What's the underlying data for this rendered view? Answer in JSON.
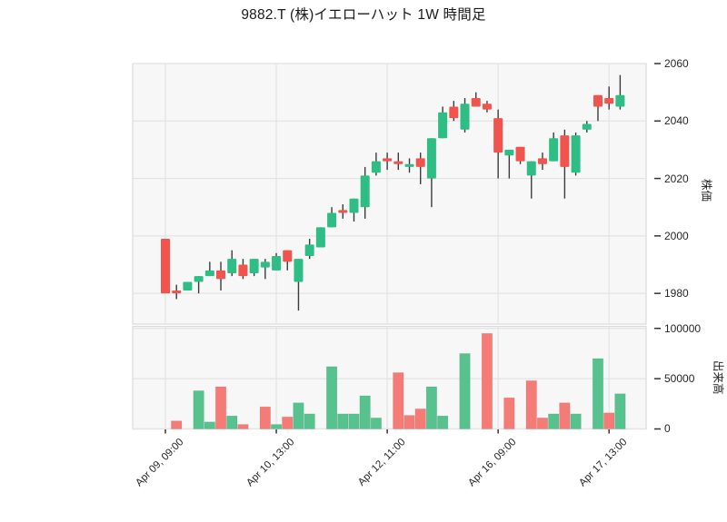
{
  "title": "9882.T (株)イエローハット 1W 時間足",
  "chart_data": {
    "type": "candlestick+volume",
    "title": "9882.T (株)イエローハット 1W 時間足",
    "num_candles": 42,
    "x_tick_labels": [
      "Apr 09, 09:00",
      "Apr 10, 13:00",
      "Apr 12, 11:00",
      "Apr 16, 09:00",
      "Apr 17, 13:00"
    ],
    "x_tick_indices": [
      0,
      10,
      20,
      30,
      40
    ],
    "price_axis": {
      "label": "株価",
      "ticks": [
        2060,
        2040,
        2020,
        2000,
        1980
      ],
      "ylim": [
        1969.3,
        2060
      ]
    },
    "volume_axis": {
      "label": "出来高",
      "ticks": [
        100000,
        50000,
        0
      ],
      "ylim": [
        0,
        102000
      ]
    },
    "candles_ohlc": [
      [
        1999,
        1999,
        1980,
        1980
      ],
      [
        1981,
        1983,
        1978,
        1980
      ],
      [
        1981,
        1984,
        1981,
        1984
      ],
      [
        1984,
        1986,
        1980,
        1986
      ],
      [
        1986,
        1991,
        1986,
        1988
      ],
      [
        1988,
        1991,
        1981,
        1985
      ],
      [
        1987,
        1995,
        1986,
        1992
      ],
      [
        1990,
        1992,
        1985,
        1986
      ],
      [
        1987,
        1992,
        1986,
        1992
      ],
      [
        1989,
        1992,
        1985,
        1991
      ],
      [
        1988,
        1994,
        1988,
        1993
      ],
      [
        1995,
        1995,
        1988,
        1991
      ],
      [
        1984,
        1992,
        1974,
        1992
      ],
      [
        1993,
        1999,
        1992,
        1997
      ],
      [
        1996,
        2003,
        1996,
        2003
      ],
      [
        2003,
        2010,
        2003,
        2008
      ],
      [
        2009,
        2011,
        2006,
        2008
      ],
      [
        2008,
        2013,
        2005,
        2013
      ],
      [
        2010,
        2024,
        2006,
        2021
      ],
      [
        2022,
        2029,
        2021,
        2026
      ],
      [
        2027,
        2029,
        2023,
        2026
      ],
      [
        2026,
        2029,
        2023,
        2025
      ],
      [
        2024,
        2027,
        2022,
        2025
      ],
      [
        2027,
        2029,
        2018,
        2024
      ],
      [
        2020,
        2034,
        2010,
        2034
      ],
      [
        2034,
        2045,
        2034,
        2043
      ],
      [
        2045,
        2047,
        2040,
        2041
      ],
      [
        2037,
        2048,
        2036,
        2046
      ],
      [
        2048,
        2050,
        2045,
        2045
      ],
      [
        2046,
        2047,
        2043,
        2044
      ],
      [
        2041,
        2044,
        2020,
        2029
      ],
      [
        2028,
        2030,
        2020,
        2030
      ],
      [
        2031,
        2031,
        2025,
        2026
      ],
      [
        2021,
        2026,
        2013,
        2026
      ],
      [
        2027,
        2029,
        2023,
        2025
      ],
      [
        2026,
        2036,
        2026,
        2034
      ],
      [
        2035,
        2037,
        2013,
        2024
      ],
      [
        2022,
        2036,
        2021,
        2035
      ],
      [
        2037,
        2040,
        2036,
        2039
      ],
      [
        2049,
        2049,
        2040,
        2045
      ],
      [
        2048,
        2052,
        2044,
        2046
      ],
      [
        2045,
        2056,
        2044,
        2049
      ]
    ],
    "volumes": [
      [
        0,
        "g"
      ],
      [
        8000,
        "r"
      ],
      [
        0,
        "g"
      ],
      [
        38000,
        "g"
      ],
      [
        7000,
        "g"
      ],
      [
        42000,
        "r"
      ],
      [
        13000,
        "g"
      ],
      [
        4500,
        "r"
      ],
      [
        0,
        "g"
      ],
      [
        22000,
        "r"
      ],
      [
        4500,
        "g"
      ],
      [
        12000,
        "r"
      ],
      [
        26000,
        "g"
      ],
      [
        15000,
        "g"
      ],
      [
        0,
        "g"
      ],
      [
        62000,
        "g"
      ],
      [
        15000,
        "g"
      ],
      [
        15000,
        "g"
      ],
      [
        33000,
        "g"
      ],
      [
        11000,
        "g"
      ],
      [
        0,
        "g"
      ],
      [
        56000,
        "r"
      ],
      [
        13500,
        "r"
      ],
      [
        20000,
        "r"
      ],
      [
        42000,
        "g"
      ],
      [
        13000,
        "g"
      ],
      [
        0,
        "g"
      ],
      [
        75000,
        "g"
      ],
      [
        0,
        "g"
      ],
      [
        95000,
        "r"
      ],
      [
        0,
        "g"
      ],
      [
        31000,
        "r"
      ],
      [
        0,
        "g"
      ],
      [
        48000,
        "r"
      ],
      [
        11000,
        "r"
      ],
      [
        15000,
        "g"
      ],
      [
        26000,
        "r"
      ],
      [
        15000,
        "g"
      ],
      [
        0,
        "g"
      ],
      [
        70000,
        "g"
      ],
      [
        16000,
        "r"
      ],
      [
        35000,
        "g"
      ]
    ],
    "colors": {
      "up": "#2EBD85",
      "down": "#F0544C",
      "vol_up": "#57C28D",
      "vol_down": "#F57B76",
      "wick": "#3b3b3b",
      "grid": "#e3e3e3",
      "panel_edge": "#dadada",
      "panel_bg": "#f7f7f7",
      "tick_text": "#262626",
      "tick_mark": "#333333"
    },
    "legend": "none",
    "grid": "on"
  }
}
